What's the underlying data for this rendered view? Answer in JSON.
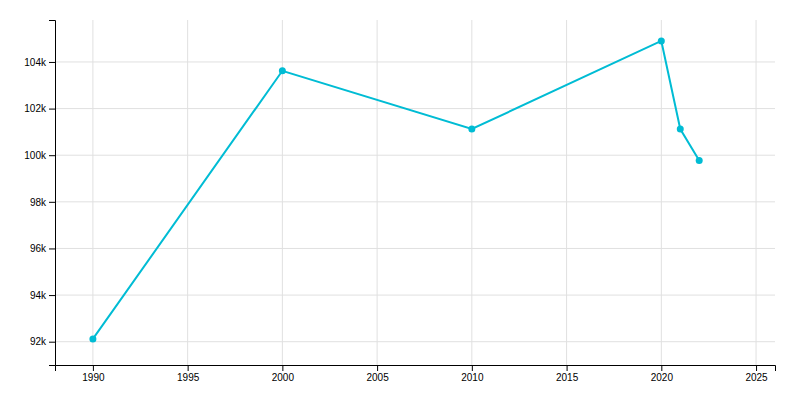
{
  "chart_data": {
    "type": "line",
    "x": [
      1990,
      2000,
      2010,
      2020,
      2021,
      2022
    ],
    "values": [
      92119,
      103621,
      101123,
      104901,
      101123,
      99770
    ],
    "color": "#00bcd4",
    "marker": "circle",
    "xlim": [
      1988,
      2026
    ],
    "ylim": [
      91000,
      105800
    ],
    "xticks": [
      1990,
      1995,
      2000,
      2005,
      2010,
      2015,
      2020,
      2025
    ],
    "yticks": [
      {
        "value": 92000,
        "label": "92k"
      },
      {
        "value": 94000,
        "label": "94k"
      },
      {
        "value": 96000,
        "label": "96k"
      },
      {
        "value": 98000,
        "label": "98k"
      },
      {
        "value": 100000,
        "label": "100k"
      },
      {
        "value": 102000,
        "label": "102k"
      },
      {
        "value": 104000,
        "label": "104k"
      }
    ],
    "grid": true
  }
}
